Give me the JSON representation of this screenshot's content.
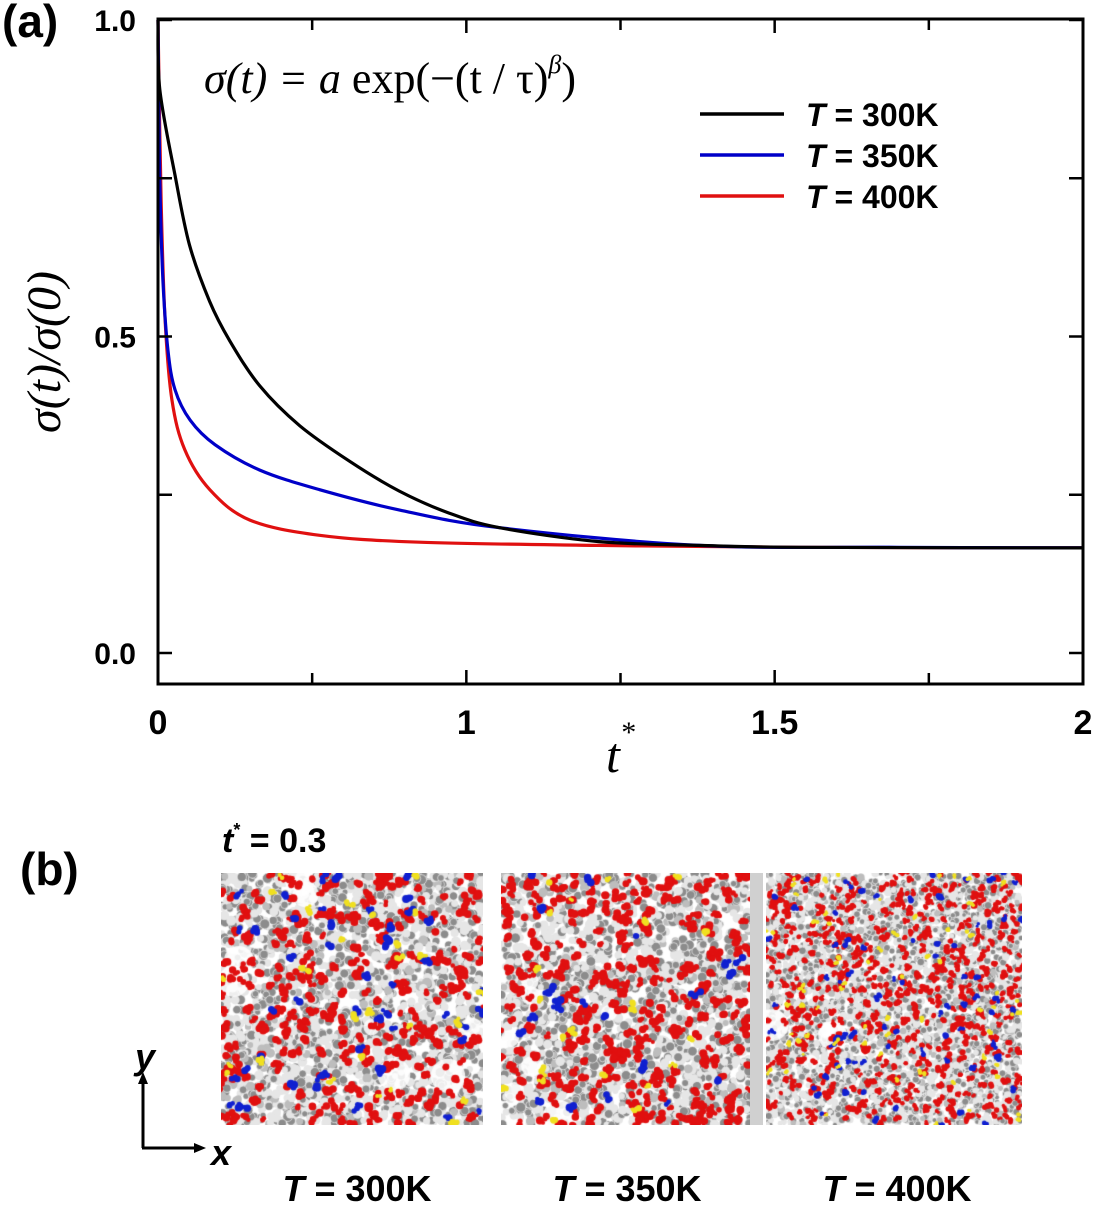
{
  "figure": {
    "panel_a_label": "(a)",
    "panel_b_label": "(b)"
  },
  "chart_data": {
    "type": "line",
    "title": "",
    "annotation": "σ(t) = a exp(−(t / τ)^β)",
    "annotation_parts": {
      "lhs": "σ(t) = ",
      "a": "a",
      "exp": " exp(−(t / τ)",
      "sup": "β",
      "close": ")"
    },
    "xlabel": "t",
    "xlabel_sup": "*",
    "ylabel": "σ(t)/σ(0)",
    "x_ticks": [
      {
        "value": 0,
        "label": "0"
      },
      {
        "value": 0.5,
        "label": ""
      },
      {
        "value": 1,
        "label": "1"
      },
      {
        "value": 1.25,
        "label": ""
      },
      {
        "value": 1.5,
        "label": "1.5"
      },
      {
        "value": 1.75,
        "label": ""
      },
      {
        "value": 2,
        "label": "2"
      }
    ],
    "y_ticks": [
      {
        "value": 0.0,
        "label": "0.0"
      },
      {
        "value": 0.25,
        "label": ""
      },
      {
        "value": 0.5,
        "label": "0.5"
      },
      {
        "value": 0.75,
        "label": ""
      },
      {
        "value": 1.0,
        "label": "1.0"
      }
    ],
    "xlim": [
      0,
      2
    ],
    "ylim": [
      -0.05,
      1.0
    ],
    "grid": false,
    "legend_position": "top-right",
    "series": [
      {
        "name": "T = 300K",
        "legend_italic": "T",
        "legend_rest": " = 300K",
        "color": "#000000",
        "x": [
          0,
          0.006,
          0.055,
          0.102,
          0.167,
          0.233,
          0.33,
          0.46,
          0.621,
          0.782,
          0.944,
          1.054,
          1.215,
          1.377,
          1.539,
          2.0
        ],
        "y": [
          1.0,
          0.89,
          0.755,
          0.645,
          0.556,
          0.493,
          0.422,
          0.359,
          0.303,
          0.256,
          0.221,
          0.198,
          0.176,
          0.17,
          0.167,
          0.166
        ]
      },
      {
        "name": "T = 350K",
        "legend_italic": "T",
        "legend_rest": " = 350K",
        "color": "#0000c8",
        "x": [
          0,
          0.006,
          0.016,
          0.032,
          0.055,
          0.104,
          0.185,
          0.33,
          0.524,
          0.782,
          1.054,
          1.377,
          1.701,
          2.0
        ],
        "y": [
          1.0,
          0.747,
          0.589,
          0.479,
          0.416,
          0.368,
          0.329,
          0.289,
          0.258,
          0.226,
          0.198,
          0.17,
          0.167,
          0.166
        ]
      },
      {
        "name": "T = 400K",
        "legend_italic": "T",
        "legend_rest": " = 400K",
        "color": "#e01010",
        "x": [
          0,
          0.01,
          0.023,
          0.045,
          0.087,
          0.168,
          0.298,
          0.524,
          0.848,
          1.215,
          1.539,
          2.0
        ],
        "y": [
          1.0,
          0.716,
          0.526,
          0.4,
          0.321,
          0.258,
          0.21,
          0.186,
          0.175,
          0.17,
          0.167,
          0.166
        ]
      }
    ]
  },
  "snapshots": {
    "time_label_var": "t",
    "time_label_sup": "*",
    "time_label_rest": " = 0.3",
    "axes": {
      "y": "y",
      "x": "x"
    },
    "panels": [
      {
        "caption_italic": "T",
        "caption_rest": " = 300K",
        "seed": 11,
        "red_density": 0.16,
        "blue_density": 0.025,
        "yellow_density": 0.01,
        "coarseness": "coarse"
      },
      {
        "caption_italic": "T",
        "caption_rest": " = 350K",
        "seed": 23,
        "red_density": 0.18,
        "blue_density": 0.012,
        "yellow_density": 0.008,
        "coarseness": "coarse"
      },
      {
        "caption_italic": "T",
        "caption_rest": " = 400K",
        "seed": 37,
        "red_density": 0.17,
        "blue_density": 0.02,
        "yellow_density": 0.012,
        "coarseness": "fine"
      }
    ],
    "atom_colors": {
      "carbon": "#8c8c8c",
      "hydrogen": "#e6e6e6",
      "oxygen": "#e01010",
      "nitrogen": "#1020d0",
      "sulfur": "#f0e020"
    }
  }
}
